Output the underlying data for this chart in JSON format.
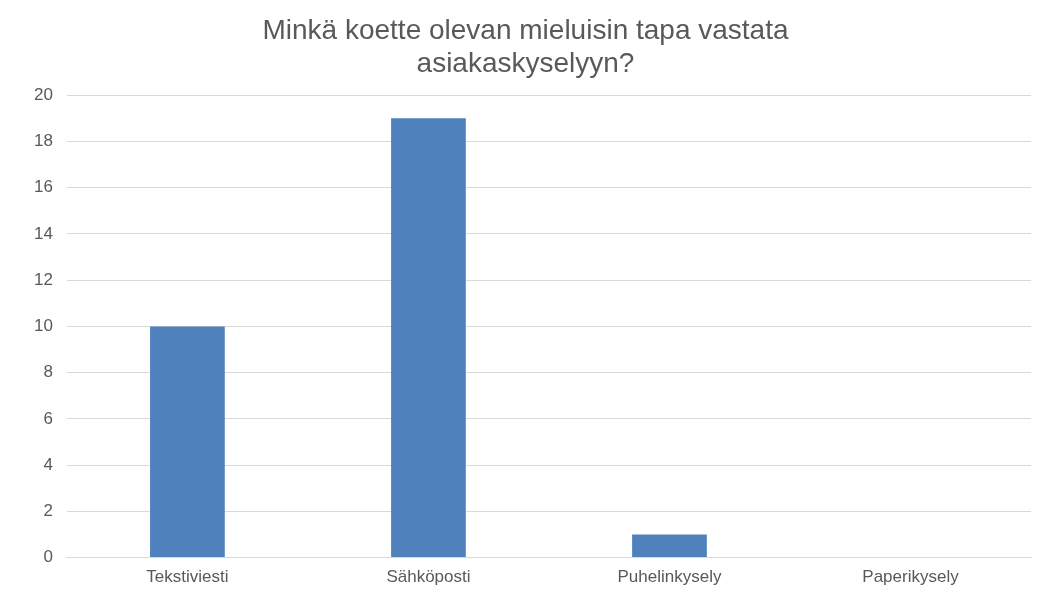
{
  "chart_data": {
    "type": "bar",
    "title": "Minkä koette olevan mieluisin tapa vastata asiakaskyselyyn?",
    "categories": [
      "Tekstiviesti",
      "Sähköposti",
      "Puhelinkysely",
      "Paperikysely"
    ],
    "values": [
      10,
      19,
      1,
      0
    ],
    "color": "#4f81bd",
    "ylim": [
      0,
      20
    ],
    "yticks": [
      0,
      2,
      4,
      6,
      8,
      10,
      12,
      14,
      16,
      18,
      20
    ],
    "grid": "y"
  }
}
